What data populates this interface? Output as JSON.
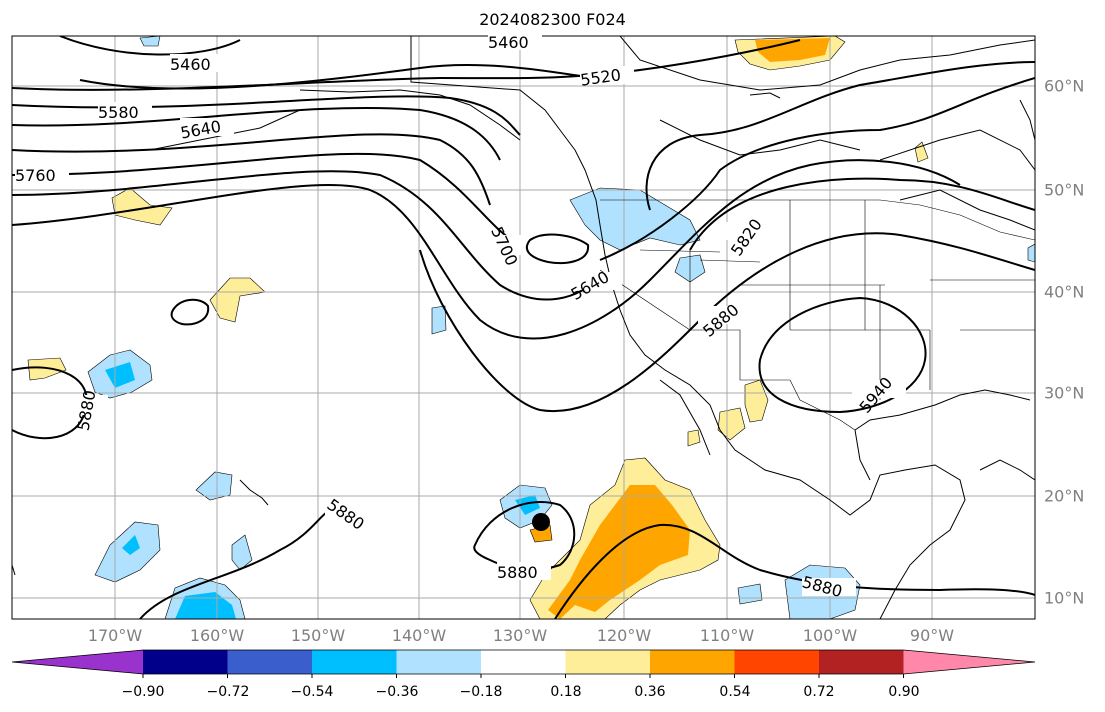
{
  "title": "2024082300 F024",
  "map": {
    "lon_labels": [
      "170°W",
      "160°W",
      "150°W",
      "140°W",
      "130°W",
      "120°W",
      "110°W",
      "100°W",
      "90°W"
    ],
    "lat_labels": [
      "60°N",
      "50°N",
      "40°N",
      "30°N",
      "20°N",
      "10°N"
    ],
    "contour_labels": [
      "5460",
      "5460",
      "5520",
      "5580",
      "5640",
      "5760",
      "5700",
      "5640",
      "5820",
      "5880",
      "5940",
      "5880",
      "5880",
      "5880",
      "5880"
    ],
    "storm_marker": "tropical-cyclone-position-dot"
  },
  "colorbar": {
    "ticks": [
      "−0.90",
      "−0.72",
      "−0.54",
      "−0.36",
      "−0.18",
      "0.18",
      "0.36",
      "0.54",
      "0.72",
      "0.90"
    ],
    "colors": [
      "#9a32cd",
      "#00008b",
      "#3a5fcd",
      "#00bfff",
      "#b0e2ff",
      "#ffffff",
      "#ffee99",
      "#ffa500",
      "#ff4500",
      "#b22222",
      "#ff88aa"
    ],
    "extend": "both"
  }
}
